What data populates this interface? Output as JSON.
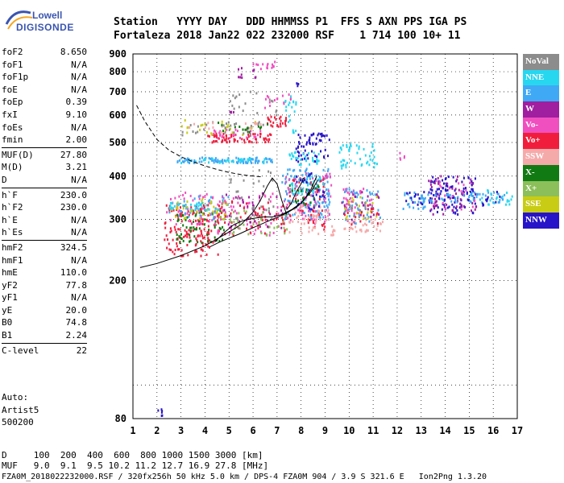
{
  "logo": {
    "top": "Lowell",
    "bottom": "DIGISONDE"
  },
  "header": {
    "line1": "Station   YYYY DAY   DDD HHMMSS P1  FFS S AXN PPS IGA PS",
    "line2": "Fortaleza 2018 Jan22 022 232000 RSF    1 714 100 10+ 11"
  },
  "params": [
    [
      {
        "name": "foF2",
        "value": "8.650"
      },
      {
        "name": "foF1",
        "value": "N/A"
      },
      {
        "name": "foF1p",
        "value": "N/A"
      },
      {
        "name": "foE",
        "value": "N/A"
      },
      {
        "name": "foEp",
        "value": "0.39"
      },
      {
        "name": "fxI",
        "value": "9.10"
      },
      {
        "name": "foEs",
        "value": "N/A"
      },
      {
        "name": "fmin",
        "value": "2.00"
      }
    ],
    [
      {
        "name": "MUF(D)",
        "value": "27.80"
      },
      {
        "name": "M(D)",
        "value": "3.21"
      },
      {
        "name": "D",
        "value": "N/A"
      }
    ],
    [
      {
        "name": "h`F",
        "value": "230.0"
      },
      {
        "name": "h`F2",
        "value": "230.0"
      },
      {
        "name": "h`E",
        "value": "N/A"
      },
      {
        "name": "h`Es",
        "value": "N/A"
      }
    ],
    [
      {
        "name": "hmF2",
        "value": "324.5"
      },
      {
        "name": "hmF1",
        "value": "N/A"
      },
      {
        "name": "hmE",
        "value": "110.0"
      },
      {
        "name": "yF2",
        "value": "77.8"
      },
      {
        "name": "yF1",
        "value": "N/A"
      },
      {
        "name": "yE",
        "value": "20.0"
      },
      {
        "name": "B0",
        "value": "74.8"
      },
      {
        "name": "B1",
        "value": "2.24"
      }
    ],
    [
      {
        "name": "C-level",
        "value": "22"
      }
    ]
  ],
  "auto": {
    "line1": "Auto:",
    "line2": "Artist5",
    "line3": "500200"
  },
  "legend": [
    {
      "label": "NoVal",
      "color": "#8c8c8c"
    },
    {
      "label": "NNE",
      "color": "#27d7f0"
    },
    {
      "label": "E",
      "color": "#3fa9f5"
    },
    {
      "label": "W",
      "color": "#a01ea0"
    },
    {
      "label": "Vo-",
      "color": "#f04fc0"
    },
    {
      "label": "Vo+",
      "color": "#f01e3c"
    },
    {
      "label": "SSW",
      "color": "#f5aaaa"
    },
    {
      "label": "X-",
      "color": "#127a12"
    },
    {
      "label": "X+",
      "color": "#8cbf5a"
    },
    {
      "label": "SSE",
      "color": "#c8cc14"
    },
    {
      "label": "NNW",
      "color": "#2814c8"
    }
  ],
  "footer": {
    "line1": "D     100  200  400  600  800 1000 1500 3000 [km]",
    "line2": "MUF   9.0  9.1  9.5 10.2 11.2 12.7 16.9 27.8 [MHz]",
    "line3": "FZA0M_2018022232000.RSF / 320fx256h 50 kHz 5.0 km / DPS-4 FZA0M 904 / 3.9 S 321.6 E   Ion2Png 1.3.20"
  },
  "chart_data": {
    "type": "scatter",
    "title": "",
    "xlabel": "",
    "ylabel": "",
    "xlim": [
      1,
      17
    ],
    "ylim": [
      80,
      900
    ],
    "y_scale": "log",
    "grid": true,
    "x_ticks": [
      "1",
      "2",
      "3",
      "4",
      "5",
      "6",
      "7",
      "8",
      "9",
      "10",
      "11",
      "12",
      "13",
      "14",
      "15",
      "16",
      "17"
    ],
    "y_ticks": [
      "80",
      "200",
      "300",
      "400",
      "500",
      "600",
      "700",
      "800",
      "900"
    ],
    "y_tick_values": [
      80,
      200,
      300,
      400,
      500,
      600,
      700,
      800,
      900
    ],
    "y_grid": [
      80,
      100,
      200,
      300,
      400,
      500,
      600,
      700,
      800,
      900
    ],
    "clusters": [
      {
        "x": [
          2.0,
          2.3
        ],
        "y": [
          80,
          85
        ],
        "color": "#2814c8",
        "n": 6
      },
      {
        "x": [
          2.3,
          4.6
        ],
        "y": [
          235,
          330
        ],
        "color": "#f01e3c",
        "n": 160
      },
      {
        "x": [
          2.8,
          4.8
        ],
        "y": [
          255,
          320
        ],
        "color": "#127a12",
        "n": 60
      },
      {
        "x": [
          2.4,
          4.8
        ],
        "y": [
          290,
          360
        ],
        "color": "#f04fc0",
        "n": 50
      },
      {
        "x": [
          2.5,
          5.0
        ],
        "y": [
          300,
          350
        ],
        "color": "#3fa9f5",
        "n": 40
      },
      {
        "x": [
          2.6,
          5.0
        ],
        "y": [
          300,
          345
        ],
        "color": "#c8cc14",
        "n": 40
      },
      {
        "x": [
          2.5,
          4.8
        ],
        "y": [
          318,
          336
        ],
        "color": "#27d7f0",
        "n": 30
      },
      {
        "x": [
          4.5,
          7.5
        ],
        "y": [
          270,
          360
        ],
        "color": "#f04fc0",
        "n": 70
      },
      {
        "x": [
          4.5,
          7.5
        ],
        "y": [
          270,
          340
        ],
        "color": "#f01e3c",
        "n": 60
      },
      {
        "x": [
          4.8,
          7.5
        ],
        "y": [
          280,
          360
        ],
        "color": "#a01ea0",
        "n": 40
      },
      {
        "x": [
          5.0,
          7.5
        ],
        "y": [
          270,
          320
        ],
        "color": "#8cbf5a",
        "n": 40
      },
      {
        "x": [
          5.0,
          7.0
        ],
        "y": [
          300,
          420
        ],
        "color": "#8c8c8c",
        "n": 30
      },
      {
        "x": [
          2.8,
          6.8
        ],
        "y": [
          436,
          452
        ],
        "color": "#3fa9f5",
        "n": 90
      },
      {
        "x": [
          3.0,
          6.5
        ],
        "y": [
          436,
          450
        ],
        "color": "#27d7f0",
        "n": 30
      },
      {
        "x": [
          4.0,
          6.8
        ],
        "y": [
          500,
          530
        ],
        "color": "#f01e3c",
        "n": 70
      },
      {
        "x": [
          4.3,
          6.5
        ],
        "y": [
          515,
          545
        ],
        "color": "#f04fc0",
        "n": 25
      },
      {
        "x": [
          6.5,
          7.4
        ],
        "y": [
          555,
          595
        ],
        "color": "#f01e3c",
        "n": 25
      },
      {
        "x": [
          3.0,
          6.5
        ],
        "y": [
          525,
          580
        ],
        "color": "#c8cc14",
        "n": 25
      },
      {
        "x": [
          3.0,
          6.5
        ],
        "y": [
          520,
          575
        ],
        "color": "#8c8c8c",
        "n": 30
      },
      {
        "x": [
          3.3,
          6.4
        ],
        "y": [
          530,
          575
        ],
        "color": "#f5aaaa",
        "n": 15
      },
      {
        "x": [
          4.5,
          7.0
        ],
        "y": [
          535,
          575
        ],
        "color": "#127a12",
        "n": 15
      },
      {
        "x": [
          5.0,
          7.0
        ],
        "y": [
          590,
          700
        ],
        "color": "#8c8c8c",
        "n": 20
      },
      {
        "x": [
          6.5,
          7.7
        ],
        "y": [
          620,
          690
        ],
        "color": "#f04fc0",
        "n": 15
      },
      {
        "x": [
          6.0,
          7.1
        ],
        "y": [
          810,
          860
        ],
        "color": "#f04fc0",
        "n": 15
      },
      {
        "x": [
          5.3,
          6.2
        ],
        "y": [
          760,
          860
        ],
        "color": "#a01ea0",
        "n": 10
      },
      {
        "x": [
          7.3,
          7.8
        ],
        "y": [
          530,
          680
        ],
        "color": "#27d7f0",
        "n": 20
      },
      {
        "x": [
          7.8,
          8.0
        ],
        "y": [
          720,
          750
        ],
        "color": "#2814c8",
        "n": 3
      },
      {
        "x": [
          7.8,
          9.2
        ],
        "y": [
          440,
          530
        ],
        "color": "#2814c8",
        "n": 60
      },
      {
        "x": [
          7.5,
          8.8
        ],
        "y": [
          430,
          470
        ],
        "color": "#27d7f0",
        "n": 30
      },
      {
        "x": [
          7.2,
          9.2
        ],
        "y": [
          300,
          420
        ],
        "color": "#3fa9f5",
        "n": 120
      },
      {
        "x": [
          7.3,
          9.3
        ],
        "y": [
          290,
          410
        ],
        "color": "#f04fc0",
        "n": 70
      },
      {
        "x": [
          7.5,
          9.0
        ],
        "y": [
          280,
          400
        ],
        "color": "#f01e3c",
        "n": 50
      },
      {
        "x": [
          7.5,
          9.4
        ],
        "y": [
          270,
          330
        ],
        "color": "#f5aaaa",
        "n": 60
      },
      {
        "x": [
          7.5,
          9.0
        ],
        "y": [
          330,
          400
        ],
        "color": "#27d7f0",
        "n": 40
      },
      {
        "x": [
          7.6,
          9.0
        ],
        "y": [
          320,
          410
        ],
        "color": "#2814c8",
        "n": 30
      },
      {
        "x": [
          7.5,
          8.8
        ],
        "y": [
          330,
          380
        ],
        "color": "#127a12",
        "n": 20
      },
      {
        "x": [
          9.6,
          11.2
        ],
        "y": [
          420,
          495
        ],
        "color": "#27d7f0",
        "n": 50
      },
      {
        "x": [
          9.7,
          11.0
        ],
        "y": [
          310,
          370
        ],
        "color": "#f04fc0",
        "n": 40
      },
      {
        "x": [
          9.7,
          11.3
        ],
        "y": [
          290,
          370
        ],
        "color": "#3fa9f5",
        "n": 40
      },
      {
        "x": [
          9.7,
          11.3
        ],
        "y": [
          290,
          360
        ],
        "color": "#a01ea0",
        "n": 25
      },
      {
        "x": [
          9.7,
          11.3
        ],
        "y": [
          300,
          350
        ],
        "color": "#c8cc14",
        "n": 20
      },
      {
        "x": [
          9.8,
          11.4
        ],
        "y": [
          275,
          300
        ],
        "color": "#f5aaaa",
        "n": 35
      },
      {
        "x": [
          9.7,
          11.2
        ],
        "y": [
          290,
          330
        ],
        "color": "#f01e3c",
        "n": 15
      },
      {
        "x": [
          9.8,
          10.8
        ],
        "y": [
          300,
          330
        ],
        "color": "#8c8c8c",
        "n": 10
      },
      {
        "x": [
          12.1,
          12.4
        ],
        "y": [
          445,
          475
        ],
        "color": "#f04fc0",
        "n": 5
      },
      {
        "x": [
          12.2,
          13.2
        ],
        "y": [
          320,
          360
        ],
        "color": "#3fa9f5",
        "n": 25
      },
      {
        "x": [
          12.3,
          13.2
        ],
        "y": [
          330,
          360
        ],
        "color": "#2814c8",
        "n": 15
      },
      {
        "x": [
          13.3,
          15.3
        ],
        "y": [
          310,
          400
        ],
        "color": "#2814c8",
        "n": 110
      },
      {
        "x": [
          13.3,
          15.3
        ],
        "y": [
          310,
          400
        ],
        "color": "#a01ea0",
        "n": 50
      },
      {
        "x": [
          13.0,
          16.5
        ],
        "y": [
          335,
          360
        ],
        "color": "#3fa9f5",
        "n": 60
      },
      {
        "x": [
          13.5,
          15.3
        ],
        "y": [
          320,
          390
        ],
        "color": "#f04fc0",
        "n": 20
      },
      {
        "x": [
          15.5,
          16.8
        ],
        "y": [
          330,
          365
        ],
        "color": "#27d7f0",
        "n": 20
      },
      {
        "x": [
          15.5,
          16.4
        ],
        "y": [
          325,
          360
        ],
        "color": "#2814c8",
        "n": 10
      },
      {
        "x": [
          5.0,
          5.2
        ],
        "y": [
          610,
          620
        ],
        "color": "#a01ea0",
        "n": 3
      }
    ],
    "curves": [
      {
        "name": "profile",
        "style": "solid",
        "x": [
          1.3,
          2.0,
          3.0,
          4.0,
          5.0,
          5.5,
          6.0,
          6.3,
          6.6,
          6.8,
          7.0,
          7.2,
          7.4
        ],
        "y": [
          218,
          224,
          236,
          252,
          276,
          290,
          315,
          340,
          375,
          395,
          380,
          340,
          310
        ]
      },
      {
        "name": "trace1",
        "style": "solid",
        "x": [
          4.4,
          4.8,
          5.2,
          5.6,
          6.0,
          6.4,
          6.8,
          7.2,
          7.6,
          8.0,
          8.4,
          8.7
        ],
        "y": [
          258,
          275,
          290,
          298,
          302,
          305,
          305,
          310,
          320,
          335,
          360,
          390
        ]
      },
      {
        "name": "trace2",
        "style": "solid",
        "x": [
          4.2,
          4.6,
          5.0,
          5.4,
          5.8,
          6.2,
          6.6,
          7.0,
          7.4,
          7.8,
          8.1,
          8.4,
          8.65
        ],
        "y": [
          250,
          258,
          265,
          272,
          280,
          288,
          296,
          304,
          313,
          325,
          340,
          365,
          400
        ]
      },
      {
        "name": "trace3",
        "style": "solid",
        "x": [
          7.4,
          7.6,
          7.8,
          8.0,
          8.1
        ],
        "y": [
          320,
          335,
          360,
          380,
          395
        ]
      },
      {
        "name": "model",
        "style": "dashed",
        "x": [
          1.15,
          1.5,
          2.0,
          2.5,
          3.0,
          3.5,
          4.0,
          4.5,
          5.0,
          5.5,
          6.0,
          6.4
        ],
        "y": [
          640,
          575,
          510,
          475,
          455,
          440,
          428,
          418,
          410,
          404,
          400,
          398
        ]
      }
    ]
  }
}
